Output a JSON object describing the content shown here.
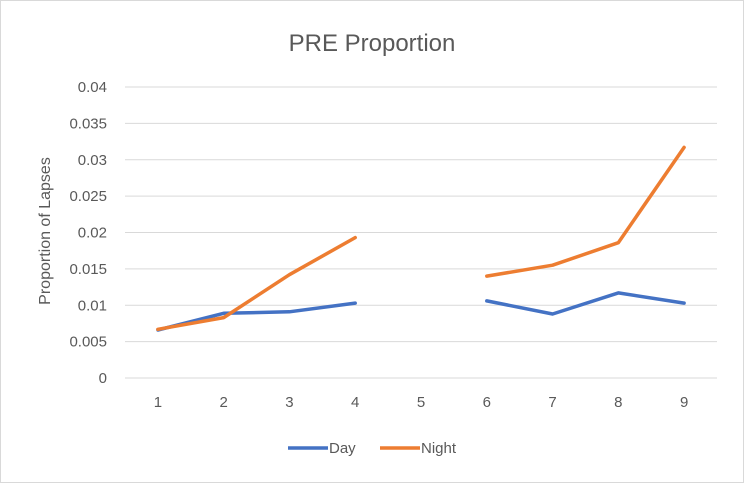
{
  "chart_data": {
    "type": "line",
    "title": "PRE Proportion",
    "xlabel": "",
    "ylabel": "Proportion of Lapses",
    "categories": [
      "1",
      "2",
      "3",
      "4",
      "5",
      "6",
      "7",
      "8",
      "9"
    ],
    "ylim": [
      0,
      0.04
    ],
    "yticks": [
      "0",
      "0.005",
      "0.01",
      "0.015",
      "0.02",
      "0.025",
      "0.03",
      "0.035",
      "0.04"
    ],
    "grid": true,
    "legend_position": "bottom",
    "series": [
      {
        "name": "Day",
        "color": "#4472c4",
        "values": [
          0.0066,
          0.0089,
          0.0091,
          0.0103,
          null,
          0.0106,
          0.0088,
          0.0117,
          0.0103
        ]
      },
      {
        "name": "Night",
        "color": "#ed7d31",
        "values": [
          0.0067,
          0.0083,
          0.0142,
          0.0193,
          null,
          0.014,
          0.0155,
          0.0186,
          0.0317
        ]
      }
    ]
  }
}
